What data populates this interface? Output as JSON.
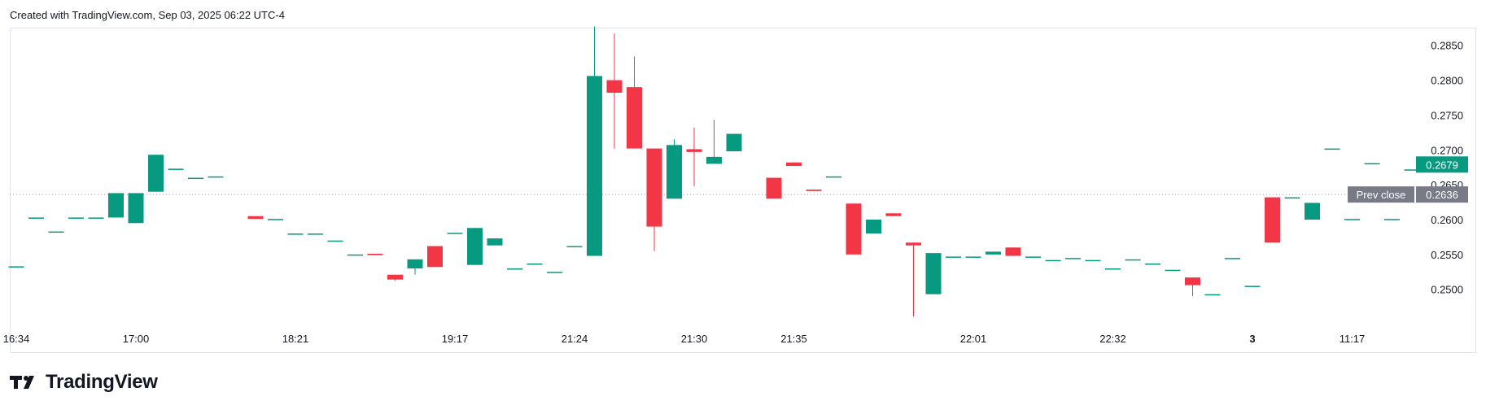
{
  "header": {
    "caption": "Created with TradingView.com, Sep 03, 2025 06:22 UTC-4"
  },
  "brand": {
    "name": "TradingView"
  },
  "colors": {
    "up": "#089981",
    "down": "#f23645",
    "prev_close_label_bg": "#787b86",
    "last_price_bg": "#089981"
  },
  "chart_data": {
    "type": "candlestick",
    "ylim": [
      0.246,
      0.288
    ],
    "y_ticks": [
      "0.2850",
      "0.2800",
      "0.2750",
      "0.2700",
      "0.2650",
      "0.2600",
      "0.2550",
      "0.2500"
    ],
    "x_ticks": [
      {
        "label": "16:34",
        "index": 0
      },
      {
        "label": "17:00",
        "index": 6
      },
      {
        "label": "18:21",
        "index": 14
      },
      {
        "label": "19:17",
        "index": 22
      },
      {
        "label": "21:24",
        "index": 28
      },
      {
        "label": "21:30",
        "index": 34
      },
      {
        "label": "21:35",
        "index": 39
      },
      {
        "label": "22:01",
        "index": 48
      },
      {
        "label": "22:32",
        "index": 55
      },
      {
        "label": "3",
        "index": 62
      },
      {
        "label": "11:17",
        "index": 67
      }
    ],
    "prev_close": {
      "label": "Prev close",
      "value": "0.2636"
    },
    "last_price": {
      "value": "0.2679"
    },
    "candles": [
      {
        "o": 0.2533,
        "h": 0.2533,
        "c": 0.2533,
        "l": 0.2533
      },
      {
        "o": 0.2603,
        "h": 0.2603,
        "c": 0.2603,
        "l": 0.2603
      },
      {
        "o": 0.2583,
        "h": 0.2583,
        "c": 0.2583,
        "l": 0.2583
      },
      {
        "o": 0.2603,
        "h": 0.2603,
        "c": 0.2603,
        "l": 0.2603
      },
      {
        "o": 0.2603,
        "h": 0.2603,
        "c": 0.2603,
        "l": 0.2603
      },
      {
        "o": 0.2603,
        "h": 0.2638,
        "c": 0.2638,
        "l": 0.2603
      },
      {
        "o": 0.2595,
        "h": 0.2638,
        "c": 0.2638,
        "l": 0.2595
      },
      {
        "o": 0.264,
        "h": 0.2693,
        "c": 0.2693,
        "l": 0.264
      },
      {
        "o": 0.2673,
        "h": 0.2673,
        "c": 0.2673,
        "l": 0.2673
      },
      {
        "o": 0.266,
        "h": 0.266,
        "c": 0.266,
        "l": 0.266
      },
      {
        "o": 0.2662,
        "h": 0.2662,
        "c": 0.2662,
        "l": 0.2662
      },
      null,
      {
        "o": 0.2605,
        "h": 0.2605,
        "c": 0.2601,
        "l": 0.2601
      },
      {
        "o": 0.2601,
        "h": 0.2601,
        "c": 0.2601,
        "l": 0.2601
      },
      {
        "o": 0.258,
        "h": 0.258,
        "c": 0.258,
        "l": 0.258
      },
      {
        "o": 0.258,
        "h": 0.258,
        "c": 0.258,
        "l": 0.258
      },
      {
        "o": 0.257,
        "h": 0.257,
        "c": 0.257,
        "l": 0.257
      },
      {
        "o": 0.255,
        "h": 0.255,
        "c": 0.255,
        "l": 0.255
      },
      {
        "o": 0.2551,
        "h": 0.2551,
        "c": 0.2549,
        "l": 0.2549
      },
      {
        "o": 0.2521,
        "h": 0.2521,
        "c": 0.2514,
        "l": 0.2512
      },
      {
        "o": 0.253,
        "h": 0.2543,
        "c": 0.2543,
        "l": 0.2521
      },
      {
        "o": 0.2562,
        "h": 0.2562,
        "c": 0.2532,
        "l": 0.2532
      },
      {
        "o": 0.2581,
        "h": 0.2581,
        "c": 0.2581,
        "l": 0.2581
      },
      {
        "o": 0.2535,
        "h": 0.2588,
        "c": 0.2588,
        "l": 0.2535
      },
      {
        "o": 0.2563,
        "h": 0.2573,
        "c": 0.2573,
        "l": 0.2563
      },
      {
        "o": 0.253,
        "h": 0.253,
        "c": 0.253,
        "l": 0.253
      },
      {
        "o": 0.2537,
        "h": 0.2537,
        "c": 0.2537,
        "l": 0.2537
      },
      {
        "o": 0.2525,
        "h": 0.2525,
        "c": 0.2525,
        "l": 0.2525
      },
      {
        "o": 0.2562,
        "h": 0.2562,
        "c": 0.2562,
        "l": 0.2562
      },
      {
        "o": 0.2548,
        "h": 0.2877,
        "c": 0.2806,
        "l": 0.2548
      },
      {
        "o": 0.28,
        "h": 0.2867,
        "c": 0.2782,
        "l": 0.2702
      },
      {
        "o": 0.279,
        "h": 0.2834,
        "c": 0.2702,
        "l": 0.2702
      },
      {
        "o": 0.2702,
        "h": 0.2702,
        "c": 0.259,
        "l": 0.2555
      },
      {
        "o": 0.263,
        "h": 0.2715,
        "c": 0.2707,
        "l": 0.263
      },
      {
        "o": 0.2701,
        "h": 0.2732,
        "c": 0.2697,
        "l": 0.2648
      },
      {
        "o": 0.268,
        "h": 0.2743,
        "c": 0.269,
        "l": 0.268
      },
      {
        "o": 0.2698,
        "h": 0.2723,
        "c": 0.2723,
        "l": 0.2698
      },
      null,
      {
        "o": 0.266,
        "h": 0.266,
        "c": 0.263,
        "l": 0.263
      },
      {
        "o": 0.2682,
        "h": 0.2682,
        "c": 0.2677,
        "l": 0.2677
      },
      {
        "o": 0.2643,
        "h": 0.2643,
        "c": 0.2641,
        "l": 0.2641
      },
      {
        "o": 0.2662,
        "h": 0.2662,
        "c": 0.2662,
        "l": 0.2662
      },
      {
        "o": 0.2623,
        "h": 0.2623,
        "c": 0.255,
        "l": 0.255
      },
      {
        "o": 0.258,
        "h": 0.26,
        "c": 0.26,
        "l": 0.258
      },
      {
        "o": 0.2609,
        "h": 0.2609,
        "c": 0.2605,
        "l": 0.2605
      },
      {
        "o": 0.2567,
        "h": 0.2567,
        "c": 0.2563,
        "l": 0.2461
      },
      {
        "o": 0.2493,
        "h": 0.2552,
        "c": 0.2552,
        "l": 0.2493
      },
      {
        "o": 0.2547,
        "h": 0.2547,
        "c": 0.2547,
        "l": 0.2547
      },
      {
        "o": 0.2547,
        "h": 0.2547,
        "c": 0.2547,
        "l": 0.2547
      },
      {
        "o": 0.255,
        "h": 0.2554,
        "c": 0.2554,
        "l": 0.255
      },
      {
        "o": 0.256,
        "h": 0.256,
        "c": 0.2548,
        "l": 0.2548
      },
      {
        "o": 0.2547,
        "h": 0.2547,
        "c": 0.2547,
        "l": 0.2547
      },
      {
        "o": 0.2542,
        "h": 0.2542,
        "c": 0.2542,
        "l": 0.2542
      },
      {
        "o": 0.2545,
        "h": 0.2545,
        "c": 0.2545,
        "l": 0.2545
      },
      {
        "o": 0.2542,
        "h": 0.2542,
        "c": 0.2542,
        "l": 0.2542
      },
      {
        "o": 0.253,
        "h": 0.253,
        "c": 0.253,
        "l": 0.253
      },
      {
        "o": 0.2543,
        "h": 0.2543,
        "c": 0.2543,
        "l": 0.2543
      },
      {
        "o": 0.2537,
        "h": 0.2537,
        "c": 0.2537,
        "l": 0.2537
      },
      {
        "o": 0.2528,
        "h": 0.2528,
        "c": 0.2528,
        "l": 0.2528
      },
      {
        "o": 0.2517,
        "h": 0.2517,
        "c": 0.2506,
        "l": 0.249
      },
      {
        "o": 0.2493,
        "h": 0.2493,
        "c": 0.2493,
        "l": 0.2493
      },
      {
        "o": 0.2545,
        "h": 0.2545,
        "c": 0.2545,
        "l": 0.2545
      },
      {
        "o": 0.2505,
        "h": 0.2505,
        "c": 0.2505,
        "l": 0.2505
      },
      {
        "o": 0.2632,
        "h": 0.2632,
        "c": 0.2567,
        "l": 0.2567
      },
      {
        "o": 0.2632,
        "h": 0.2632,
        "c": 0.2632,
        "l": 0.2632
      },
      {
        "o": 0.26,
        "h": 0.2624,
        "c": 0.2624,
        "l": 0.26
      },
      {
        "o": 0.2702,
        "h": 0.2702,
        "c": 0.2702,
        "l": 0.2702
      },
      {
        "o": 0.2601,
        "h": 0.2601,
        "c": 0.2601,
        "l": 0.2601
      },
      {
        "o": 0.2681,
        "h": 0.2681,
        "c": 0.2681,
        "l": 0.2681
      },
      {
        "o": 0.2601,
        "h": 0.2601,
        "c": 0.2601,
        "l": 0.2601
      },
      {
        "o": 0.2672,
        "h": 0.2672,
        "c": 0.2672,
        "l": 0.2672
      },
      {
        "o": 0.2679,
        "h": 0.2679,
        "c": 0.2679,
        "l": 0.2679
      }
    ]
  }
}
